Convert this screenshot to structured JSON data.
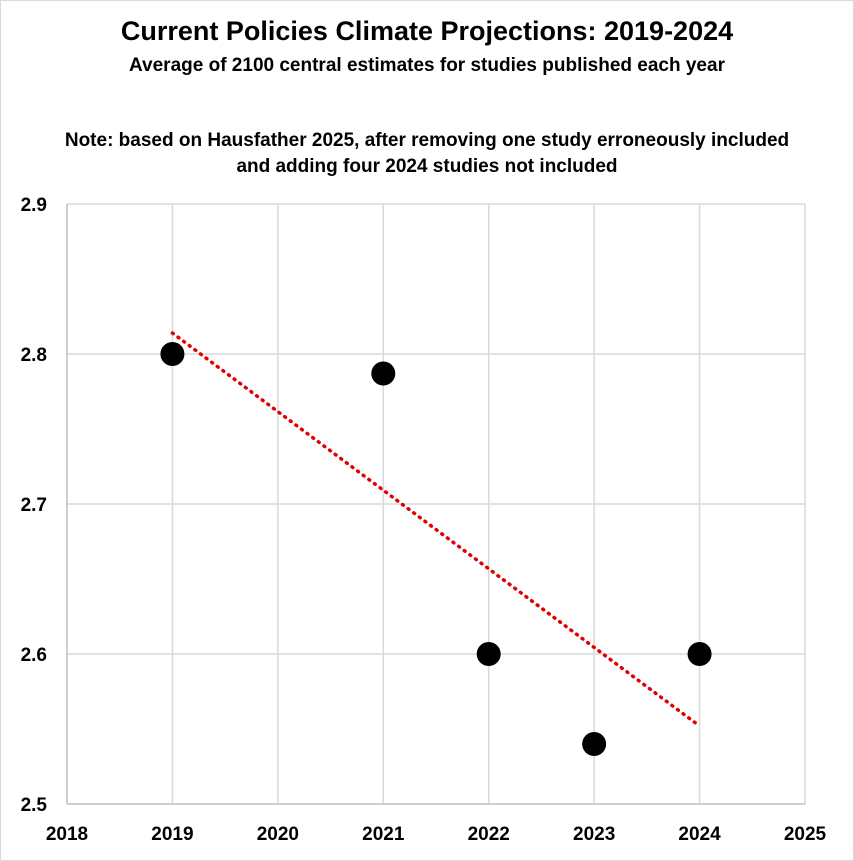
{
  "chart_data": {
    "type": "scatter",
    "title": "Current Policies Climate Projections: 2019-2024",
    "subtitle": "Average of 2100 central estimates for studies published each year",
    "note": "Note: based on Hausfather 2025, after removing one study erroneously included and adding four 2024 studies not included",
    "xlabel": "",
    "ylabel": "",
    "xlim": [
      2018,
      2025
    ],
    "ylim": [
      2.5,
      2.9
    ],
    "x_ticks": [
      2018,
      2019,
      2020,
      2021,
      2022,
      2023,
      2024,
      2025
    ],
    "y_ticks": [
      2.5,
      2.6,
      2.7,
      2.8,
      2.9
    ],
    "y_tick_labels": [
      "2.5",
      "2.6",
      "2.7",
      "2.8",
      "2.9"
    ],
    "grid": true,
    "legend": "none",
    "series": [
      {
        "name": "Average 2100 central estimate",
        "x": [
          2019,
          2021,
          2022,
          2023,
          2024
        ],
        "y": [
          2.8,
          2.787,
          2.6,
          2.54,
          2.6
        ],
        "color": "#000000"
      }
    ],
    "trendline": {
      "style": "dotted",
      "color": "#e00000",
      "x": [
        2019,
        2024
      ],
      "y": [
        2.814,
        2.552
      ]
    }
  }
}
